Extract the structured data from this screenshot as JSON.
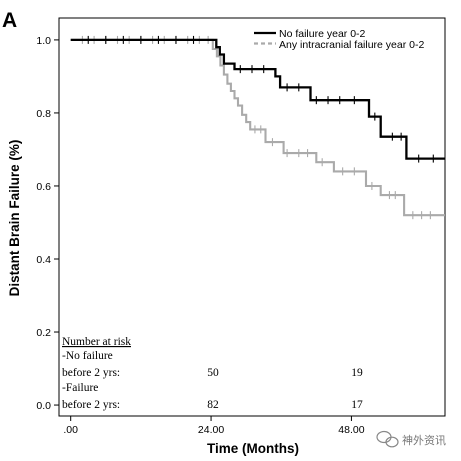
{
  "panel_label": "A",
  "watermark": "神外资讯",
  "chart_data": {
    "type": "line",
    "subtype": "kaplan-meier",
    "title": "",
    "xlabel": "Time (Months)",
    "ylabel": "Distant Brain Failure (%)",
    "xlim": [
      -2,
      64
    ],
    "ylim": [
      -0.03,
      1.06
    ],
    "x_ticks": [
      0,
      24,
      48
    ],
    "x_tick_labels": [
      ".00",
      "24.00",
      "48.00"
    ],
    "y_ticks": [
      0,
      0.2,
      0.4,
      0.6,
      0.8,
      1.0
    ],
    "y_tick_labels": [
      "0.0",
      "0.2",
      "0.4",
      "0.6",
      "0.8",
      "1.0"
    ],
    "grid": false,
    "legend_position": "top-right",
    "series": [
      {
        "name": "No failure year 0-2",
        "color": "#000000",
        "style": "solid",
        "points": [
          [
            0,
            1.0
          ],
          [
            24.9,
            1.0
          ],
          [
            24.9,
            0.98
          ],
          [
            25.5,
            0.98
          ],
          [
            25.5,
            0.96
          ],
          [
            26.2,
            0.96
          ],
          [
            26.2,
            0.935
          ],
          [
            28,
            0.935
          ],
          [
            28,
            0.92
          ],
          [
            35,
            0.92
          ],
          [
            35,
            0.9
          ],
          [
            35.8,
            0.9
          ],
          [
            35.8,
            0.87
          ],
          [
            41,
            0.87
          ],
          [
            41,
            0.835
          ],
          [
            51,
            0.835
          ],
          [
            51,
            0.79
          ],
          [
            53,
            0.79
          ],
          [
            53,
            0.735
          ],
          [
            57.4,
            0.735
          ],
          [
            57.4,
            0.675
          ],
          [
            64,
            0.675
          ]
        ],
        "censor_x": [
          3,
          6,
          9,
          12,
          15,
          18,
          21,
          29,
          31,
          33,
          37,
          39,
          42,
          44,
          46,
          48.5,
          52,
          55,
          56.5,
          59.5,
          62
        ]
      },
      {
        "name": "Any intracranial failure year 0-2",
        "color": "#aaaaaa",
        "style": "solid",
        "points": [
          [
            0,
            1.0
          ],
          [
            24.3,
            1.0
          ],
          [
            24.3,
            0.975
          ],
          [
            25,
            0.975
          ],
          [
            25,
            0.955
          ],
          [
            25.6,
            0.955
          ],
          [
            25.6,
            0.93
          ],
          [
            26.2,
            0.93
          ],
          [
            26.2,
            0.905
          ],
          [
            26.8,
            0.905
          ],
          [
            26.8,
            0.88
          ],
          [
            27.4,
            0.88
          ],
          [
            27.4,
            0.86
          ],
          [
            28,
            0.86
          ],
          [
            28,
            0.84
          ],
          [
            28.6,
            0.84
          ],
          [
            28.6,
            0.82
          ],
          [
            29.3,
            0.82
          ],
          [
            29.3,
            0.795
          ],
          [
            30,
            0.795
          ],
          [
            30,
            0.775
          ],
          [
            30.7,
            0.775
          ],
          [
            30.7,
            0.755
          ],
          [
            33.3,
            0.755
          ],
          [
            33.3,
            0.72
          ],
          [
            36.4,
            0.72
          ],
          [
            36.4,
            0.69
          ],
          [
            42,
            0.69
          ],
          [
            42,
            0.665
          ],
          [
            45,
            0.665
          ],
          [
            45,
            0.64
          ],
          [
            50.5,
            0.64
          ],
          [
            50.5,
            0.6
          ],
          [
            53,
            0.6
          ],
          [
            53,
            0.575
          ],
          [
            57,
            0.575
          ],
          [
            57,
            0.52
          ],
          [
            64,
            0.52
          ]
        ],
        "censor_x": [
          2,
          4,
          6,
          8,
          10,
          12,
          14,
          16,
          18,
          20,
          22,
          23.5,
          31.5,
          32.5,
          34.5,
          37,
          39,
          40.5,
          43,
          46.5,
          48.5,
          51.5,
          54.5,
          55.5,
          58.5,
          60,
          61.5
        ]
      }
    ]
  },
  "risk_table": {
    "title": "Number at risk",
    "rows": [
      {
        "group": "-No failure",
        "label": "before 2 yrs:",
        "counts": [
          "50",
          "19"
        ]
      },
      {
        "group": "-Failure",
        "label": "before 2 yrs:",
        "counts": [
          "82",
          "17"
        ]
      }
    ]
  }
}
